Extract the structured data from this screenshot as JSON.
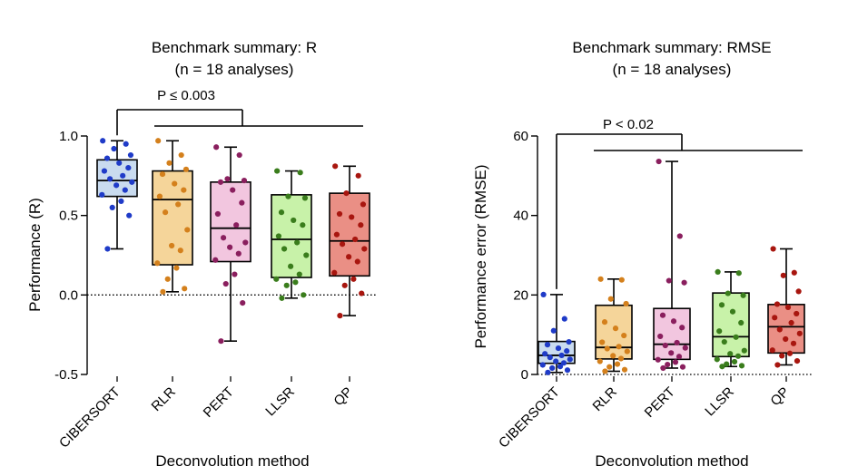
{
  "chart_data": [
    {
      "type": "box",
      "title_line1": "Benchmark summary: R",
      "title_line2": "(n = 18 analyses)",
      "ylabel": "Performance (R)",
      "xlabel": "Deconvolution method",
      "ylim": [
        -0.5,
        1.0
      ],
      "yticks": [
        "-0.5",
        "0.0",
        "0.5",
        "1.0"
      ],
      "ytick_values": [
        -0.5,
        0.0,
        0.5,
        1.0
      ],
      "reference_line": 0.0,
      "significance": "P ≤ 0.003",
      "categories": [
        "CIBERSORT",
        "RLR",
        "PERT",
        "LLSR",
        "QP"
      ],
      "series": [
        {
          "category": "CIBERSORT",
          "color": "#1f3bc8",
          "fill": "#c9dbef",
          "whisker_low": 0.29,
          "q1": 0.62,
          "median": 0.72,
          "q3": 0.85,
          "whisker_high": 0.97,
          "points": [
            0.97,
            0.95,
            0.92,
            0.88,
            0.86,
            0.83,
            0.8,
            0.78,
            0.75,
            0.73,
            0.71,
            0.69,
            0.66,
            0.63,
            0.59,
            0.55,
            0.5,
            0.29
          ]
        },
        {
          "category": "RLR",
          "color": "#d4801c",
          "fill": "#f5d59a",
          "whisker_low": 0.02,
          "q1": 0.19,
          "median": 0.6,
          "q3": 0.78,
          "whisker_high": 0.97,
          "points": [
            0.97,
            0.88,
            0.83,
            0.79,
            0.76,
            0.7,
            0.66,
            0.62,
            0.57,
            0.52,
            0.41,
            0.31,
            0.28,
            0.2,
            0.17,
            0.1,
            0.04,
            0.02
          ]
        },
        {
          "category": "PERT",
          "color": "#8a1f5e",
          "fill": "#f2c6df",
          "whisker_low": -0.29,
          "q1": 0.21,
          "median": 0.42,
          "q3": 0.71,
          "whisker_high": 0.93,
          "points": [
            0.93,
            0.88,
            0.73,
            0.72,
            0.71,
            0.66,
            0.58,
            0.51,
            0.44,
            0.36,
            0.33,
            0.3,
            0.26,
            0.22,
            0.13,
            0.07,
            -0.05,
            -0.29
          ]
        },
        {
          "category": "LLSR",
          "color": "#3a7d1c",
          "fill": "#c8f2a9",
          "whisker_low": -0.02,
          "q1": 0.11,
          "median": 0.35,
          "q3": 0.63,
          "whisker_high": 0.78,
          "points": [
            0.78,
            0.77,
            0.62,
            0.61,
            0.52,
            0.47,
            0.44,
            0.37,
            0.33,
            0.29,
            0.25,
            0.18,
            0.13,
            0.1,
            0.08,
            0.06,
            0.0,
            -0.02
          ]
        },
        {
          "category": "QP",
          "color": "#a8160f",
          "fill": "#ea8f85",
          "whisker_low": -0.13,
          "q1": 0.12,
          "median": 0.34,
          "q3": 0.64,
          "whisker_high": 0.81,
          "points": [
            0.81,
            0.75,
            0.64,
            0.57,
            0.51,
            0.49,
            0.44,
            0.38,
            0.35,
            0.32,
            0.29,
            0.24,
            0.21,
            0.14,
            0.1,
            0.06,
            0.01,
            -0.13
          ]
        }
      ]
    },
    {
      "type": "box",
      "title_line1": "Benchmark summary: RMSE",
      "title_line2": "(n = 18 analyses)",
      "ylabel": "Performance error (RMSE)",
      "xlabel": "Deconvolution method",
      "ylim": [
        0,
        60
      ],
      "yticks": [
        "0",
        "20",
        "40",
        "60"
      ],
      "ytick_values": [
        0,
        20,
        40,
        60
      ],
      "reference_line": 0,
      "significance": "P < 0.02",
      "categories": [
        "CIBERSORT",
        "RLR",
        "PERT",
        "LLSR",
        "QP"
      ],
      "series": [
        {
          "category": "CIBERSORT",
          "color": "#1f3bc8",
          "fill": "#c9dbef",
          "whisker_low": 0.5,
          "q1": 2.8,
          "median": 4.8,
          "q3": 8.3,
          "whisker_high": 20.1,
          "points": [
            20.1,
            14.0,
            11.0,
            8.2,
            7.5,
            6.6,
            5.9,
            5.2,
            4.8,
            4.3,
            3.8,
            3.3,
            2.9,
            2.4,
            2.0,
            1.6,
            1.1,
            0.5
          ]
        },
        {
          "category": "RLR",
          "color": "#d4801c",
          "fill": "#f5d59a",
          "whisker_low": 0.8,
          "q1": 3.9,
          "median": 6.8,
          "q3": 17.4,
          "whisker_high": 24.0,
          "points": [
            24.0,
            23.8,
            19.0,
            17.8,
            13.2,
            11.6,
            9.8,
            8.1,
            7.0,
            6.5,
            5.8,
            4.7,
            4.0,
            3.3,
            2.6,
            1.9,
            1.2,
            0.8
          ]
        },
        {
          "category": "PERT",
          "color": "#8a1f5e",
          "fill": "#f2c6df",
          "whisker_low": 1.6,
          "q1": 3.8,
          "median": 7.6,
          "q3": 16.6,
          "whisker_high": 53.6,
          "points": [
            53.6,
            34.8,
            23.6,
            23.1,
            14.9,
            13.4,
            11.8,
            9.6,
            8.0,
            7.3,
            6.7,
            5.4,
            4.5,
            3.7,
            3.1,
            2.5,
            1.9,
            1.6
          ]
        },
        {
          "category": "LLSR",
          "color": "#3a7d1c",
          "fill": "#c8f2a9",
          "whisker_low": 2.0,
          "q1": 4.5,
          "median": 9.5,
          "q3": 20.5,
          "whisker_high": 25.8,
          "points": [
            25.8,
            25.5,
            20.4,
            19.9,
            17.5,
            15.8,
            13.0,
            10.9,
            9.4,
            8.2,
            6.0,
            5.2,
            4.6,
            3.8,
            3.2,
            2.6,
            2.2,
            2.0
          ]
        },
        {
          "category": "QP",
          "color": "#a8160f",
          "fill": "#ea8f85",
          "whisker_low": 2.4,
          "q1": 5.4,
          "median": 12.0,
          "q3": 17.6,
          "whisker_high": 31.6,
          "points": [
            31.6,
            25.6,
            24.9,
            20.9,
            17.7,
            16.9,
            15.3,
            14.3,
            13.0,
            11.3,
            10.3,
            8.9,
            7.8,
            6.1,
            5.3,
            4.7,
            3.4,
            2.4
          ]
        }
      ]
    }
  ]
}
